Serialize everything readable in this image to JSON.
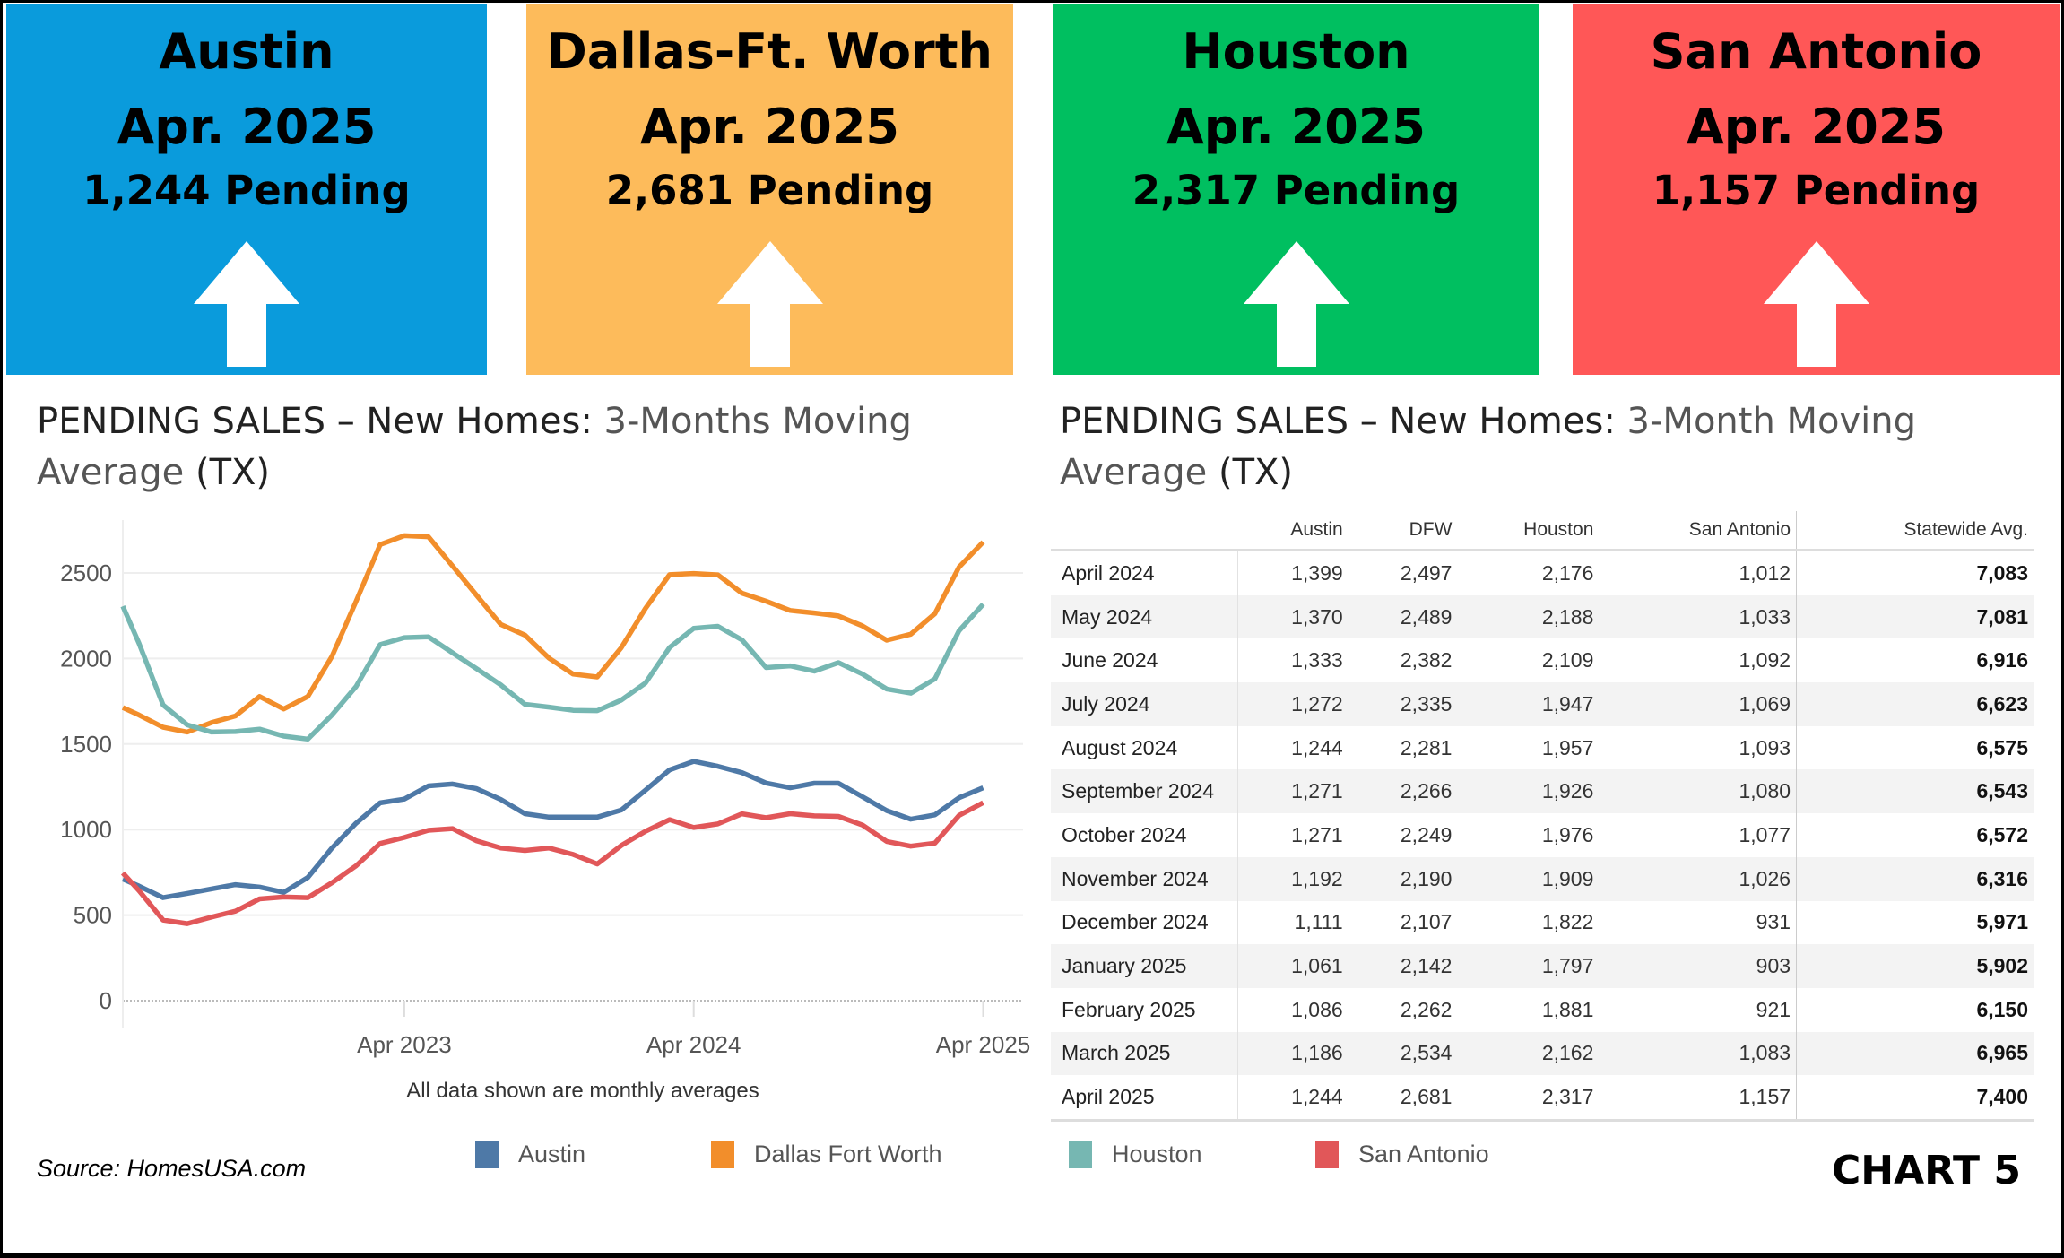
{
  "cards": [
    {
      "city": "Austin",
      "period": "Apr. 2025",
      "pending": "1,244 Pending",
      "color": "#0a9bdc",
      "trend": "arrow-up-icon"
    },
    {
      "city": "Dallas-Ft. Worth",
      "period": "Apr. 2025",
      "pending": "2,681 Pending",
      "color": "#fdbb5b",
      "trend": "arrow-up-icon"
    },
    {
      "city": "Houston",
      "period": "Apr. 2025",
      "pending": "2,317 Pending",
      "color": "#00bf60",
      "trend": "arrow-up-icon"
    },
    {
      "city": "San Antonio",
      "period": "Apr. 2025",
      "pending": "1,157 Pending",
      "color": "#ff5757",
      "trend": "arrow-up-icon"
    }
  ],
  "left_title": {
    "bold": "PENDING SALES – New Homes:",
    "light1": " 3-Months  Moving",
    "light2": "Average",
    "tail": " (TX)"
  },
  "right_title": {
    "bold": "PENDING SALES – New Homes:",
    "light1": "  3-Month Moving",
    "light2": "Average",
    "tail": " (TX)"
  },
  "chart_data": {
    "type": "line",
    "xlabel": "",
    "ylabel": "",
    "note": "All data shown are monthly averages",
    "x_ticks": [
      "Apr 2023",
      "Apr 2024",
      "Apr 2025"
    ],
    "y_ticks": [
      0,
      500,
      1000,
      1500,
      2000,
      2500
    ],
    "ylim": [
      0,
      2800
    ],
    "grid": true,
    "legend_position": "bottom",
    "x": [
      "May 2022",
      "Jun 2022",
      "Jul 2022",
      "Aug 2022",
      "Sep 2022",
      "Oct 2022",
      "Nov 2022",
      "Dec 2022",
      "Jan 2023",
      "Feb 2023",
      "Mar 2023",
      "Apr 2023",
      "May 2023",
      "Jun 2023",
      "Jul 2023",
      "Aug 2023",
      "Sep 2023",
      "Oct 2023",
      "Nov 2023",
      "Dec 2023",
      "Jan 2024",
      "Feb 2024",
      "Mar 2024",
      "Apr 2024",
      "May 2024",
      "Jun 2024",
      "Jul 2024",
      "Aug 2024",
      "Sep 2024",
      "Oct 2024",
      "Nov 2024",
      "Dec 2024",
      "Jan 2025",
      "Feb 2025",
      "Mar 2025",
      "Apr 2025"
    ],
    "series": [
      {
        "name": "Austin",
        "color": "#4e79a7",
        "values": [
          670,
          602,
          627,
          653,
          678,
          664,
          633,
          720,
          892,
          1037,
          1156,
          1178,
          1255,
          1266,
          1239,
          1176,
          1093,
          1073,
          1073,
          1073,
          1114,
          1230,
          1349,
          1399,
          1370,
          1333,
          1272,
          1244,
          1271,
          1271,
          1192,
          1111,
          1061,
          1086,
          1186,
          1244
        ]
      },
      {
        "name": "Dallas Fort Worth",
        "color": "#f28e2b",
        "values": [
          1670,
          1598,
          1570,
          1625,
          1664,
          1778,
          1705,
          1778,
          2012,
          2334,
          2666,
          2718,
          2712,
          2541,
          2369,
          2199,
          2137,
          2002,
          1909,
          1892,
          2064,
          2293,
          2490,
          2497,
          2489,
          2382,
          2335,
          2281,
          2266,
          2249,
          2190,
          2107,
          2142,
          2262,
          2534,
          2681
        ]
      },
      {
        "name": "Houston",
        "color": "#76b7b2",
        "values": [
          2089,
          1728,
          1612,
          1570,
          1573,
          1587,
          1546,
          1529,
          1670,
          1836,
          2081,
          2122,
          2127,
          2033,
          1940,
          1846,
          1732,
          1716,
          1697,
          1695,
          1757,
          1857,
          2064,
          2176,
          2188,
          2109,
          1947,
          1957,
          1926,
          1976,
          1909,
          1822,
          1797,
          1881,
          2162,
          2317
        ]
      },
      {
        "name": "San Antonio",
        "color": "#e15759",
        "values": [
          643,
          471,
          450,
          488,
          523,
          595,
          606,
          602,
          689,
          788,
          919,
          954,
          996,
          1006,
          934,
          892,
          878,
          892,
          855,
          799,
          907,
          990,
          1058,
          1012,
          1033,
          1092,
          1069,
          1093,
          1080,
          1077,
          1026,
          931,
          903,
          921,
          1083,
          1157
        ]
      }
    ]
  },
  "table": {
    "columns": [
      "",
      "Austin",
      "DFW",
      "Houston",
      "San Antonio",
      "Statewide Avg."
    ],
    "rows": [
      [
        "April 2024",
        "1,399",
        "2,497",
        "2,176",
        "1,012",
        "7,083"
      ],
      [
        "May 2024",
        "1,370",
        "2,489",
        "2,188",
        "1,033",
        "7,081"
      ],
      [
        "June 2024",
        "1,333",
        "2,382",
        "2,109",
        "1,092",
        "6,916"
      ],
      [
        "July 2024",
        "1,272",
        "2,335",
        "1,947",
        "1,069",
        "6,623"
      ],
      [
        "August 2024",
        "1,244",
        "2,281",
        "1,957",
        "1,093",
        "6,575"
      ],
      [
        "September 2024",
        "1,271",
        "2,266",
        "1,926",
        "1,080",
        "6,543"
      ],
      [
        "October 2024",
        "1,271",
        "2,249",
        "1,976",
        "1,077",
        "6,572"
      ],
      [
        "November 2024",
        "1,192",
        "2,190",
        "1,909",
        "1,026",
        "6,316"
      ],
      [
        "December 2024",
        "1,111",
        "2,107",
        "1,822",
        "931",
        "5,971"
      ],
      [
        "January 2025",
        "1,061",
        "2,142",
        "1,797",
        "903",
        "5,902"
      ],
      [
        "February 2025",
        "1,086",
        "2,262",
        "1,881",
        "921",
        "6,150"
      ],
      [
        "March 2025",
        "1,186",
        "2,534",
        "2,162",
        "1,083",
        "6,965"
      ],
      [
        "April 2025",
        "1,244",
        "2,681",
        "2,317",
        "1,157",
        "7,400"
      ]
    ]
  },
  "source": "Source: HomesUSA.com",
  "chart_label": "CHART 5"
}
